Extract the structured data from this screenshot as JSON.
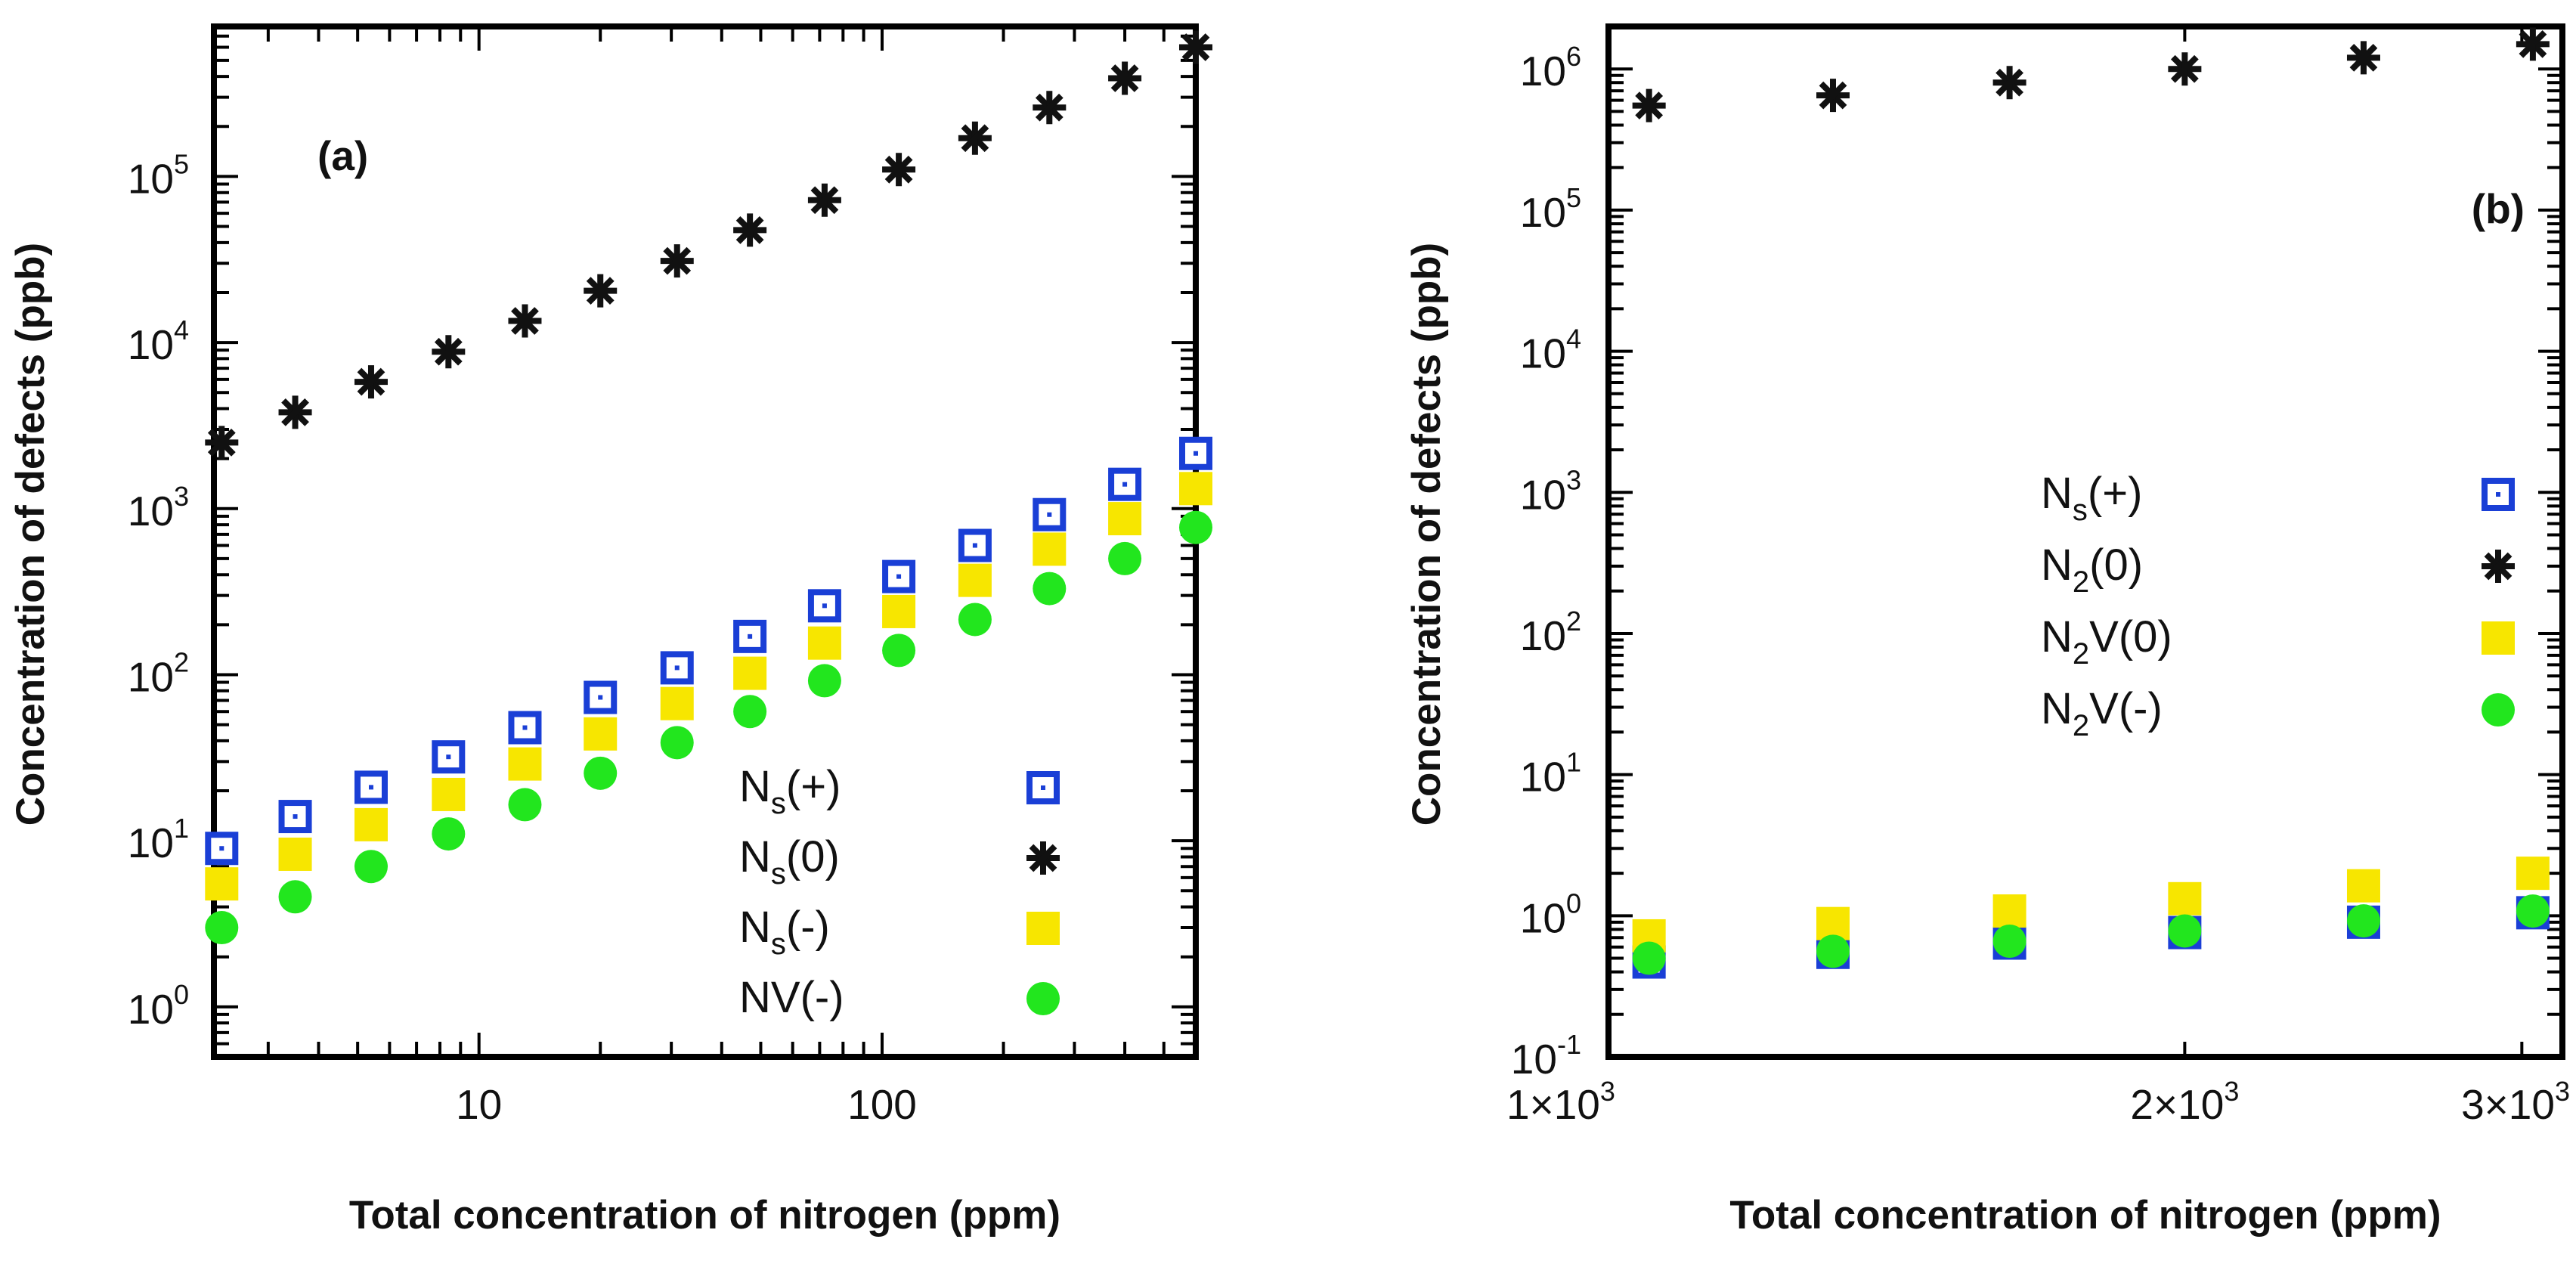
{
  "chart_data": [
    {
      "id": "a",
      "type": "scatter",
      "panel_label": "(a)",
      "xscale": "log",
      "yscale": "log",
      "xlim": [
        2.2,
        600
      ],
      "ylim": [
        0.5,
        800000
      ],
      "xlabel": "Total concentration of nitrogen (ppm)",
      "ylabel": "Concentration of defects (ppb)",
      "x_ticks": [
        {
          "value": 10,
          "label": "10"
        },
        {
          "value": 100,
          "label": "100"
        }
      ],
      "y_ticks": [
        {
          "value": 1,
          "base": "10",
          "exp": "0"
        },
        {
          "value": 10,
          "base": "10",
          "exp": "1"
        },
        {
          "value": 100,
          "base": "10",
          "exp": "2"
        },
        {
          "value": 1000,
          "base": "10",
          "exp": "3"
        },
        {
          "value": 10000,
          "base": "10",
          "exp": "4"
        },
        {
          "value": 100000,
          "base": "10",
          "exp": "5"
        }
      ],
      "legend_position": "bottom-right",
      "series": [
        {
          "name": "Ns(+)",
          "label_main": "N",
          "label_sub": "s",
          "label_tail": "(+)",
          "marker": "square-dot",
          "color": "#1a3fd6",
          "x": [
            2.3,
            3.5,
            5.4,
            8.4,
            13,
            20,
            31,
            47,
            72,
            110,
            170,
            260,
            400,
            600
          ],
          "y": [
            9,
            14,
            21,
            32,
            48,
            73,
            110,
            170,
            260,
            390,
            600,
            920,
            1400,
            2150
          ]
        },
        {
          "name": "Ns(0)",
          "label_main": "N",
          "label_sub": "s",
          "label_tail": "(0)",
          "marker": "asterisk",
          "color": "#111111",
          "x": [
            2.3,
            3.5,
            5.4,
            8.4,
            13,
            20,
            31,
            47,
            72,
            110,
            170,
            260,
            400,
            600
          ],
          "y": [
            2500,
            3800,
            5800,
            8800,
            13500,
            20500,
            31000,
            47500,
            72000,
            110000,
            170000,
            260000,
            390000,
            600000
          ]
        },
        {
          "name": "Ns(-)",
          "label_main": "N",
          "label_sub": "s",
          "label_tail": "(-)",
          "marker": "square",
          "color": "#f7e600",
          "x": [
            2.3,
            3.5,
            5.4,
            8.4,
            13,
            20,
            31,
            47,
            72,
            110,
            170,
            260,
            400,
            600
          ],
          "y": [
            5.5,
            8.3,
            12.5,
            19,
            29,
            44,
            67,
            102,
            155,
            240,
            370,
            570,
            870,
            1320
          ]
        },
        {
          "name": "NV(-)",
          "label_main": "NV(-)",
          "label_sub": "",
          "label_tail": "",
          "marker": "circle",
          "color": "#22e61e",
          "x": [
            2.3,
            3.5,
            5.4,
            8.4,
            13,
            20,
            31,
            47,
            72,
            110,
            170,
            260,
            400,
            600
          ],
          "y": [
            3,
            4.6,
            7,
            11,
            16.5,
            25.5,
            39,
            60,
            92,
            140,
            215,
            330,
            500,
            770
          ]
        }
      ]
    },
    {
      "id": "b",
      "type": "scatter",
      "panel_label": "(b)",
      "xscale": "log",
      "yscale": "log",
      "xlim": [
        1000,
        3150
      ],
      "ylim": [
        0.1,
        2000000
      ],
      "xlabel": "Total concentration of nitrogen (ppm)",
      "ylabel": "Concentration of defects (ppb)",
      "x_ticks": [
        {
          "value": 1000,
          "mant": "1",
          "base": "10",
          "exp": "3"
        },
        {
          "value": 2000,
          "mant": "2",
          "base": "10",
          "exp": "3"
        },
        {
          "value": 3000,
          "mant": "3",
          "base": "10",
          "exp": "3"
        }
      ],
      "y_ticks": [
        {
          "value": 0.1,
          "base": "10",
          "exp": "-1"
        },
        {
          "value": 1,
          "base": "10",
          "exp": "0"
        },
        {
          "value": 10,
          "base": "10",
          "exp": "1"
        },
        {
          "value": 100,
          "base": "10",
          "exp": "2"
        },
        {
          "value": 1000,
          "base": "10",
          "exp": "3"
        },
        {
          "value": 10000,
          "base": "10",
          "exp": "4"
        },
        {
          "value": 100000,
          "base": "10",
          "exp": "5"
        },
        {
          "value": 1000000,
          "base": "10",
          "exp": "6"
        }
      ],
      "legend_position": "middle-right",
      "series": [
        {
          "name": "Ns(+)",
          "label_main": "N",
          "label_sub": "s",
          "label_tail": "(+)",
          "marker": "square-dot",
          "color": "#1a3fd6",
          "x": [
            1050,
            1310,
            1620,
            2000,
            2480,
            3040
          ],
          "y": [
            0.47,
            0.55,
            0.64,
            0.76,
            0.9,
            1.05
          ]
        },
        {
          "name": "N2(0)",
          "label_main": "N",
          "label_sub": "2",
          "label_tail": "(0)",
          "marker": "asterisk",
          "color": "#111111",
          "x": [
            1050,
            1310,
            1620,
            2000,
            2480,
            3040
          ],
          "y": [
            550000,
            650000,
            800000,
            1000000,
            1200000,
            1500000
          ]
        },
        {
          "name": "N2V(0)",
          "label_main": "N",
          "label_sub": "2",
          "label_tail": "V(0)",
          "marker": "square",
          "color": "#f7e600",
          "x": [
            1050,
            1310,
            1620,
            2000,
            2480,
            3040
          ],
          "y": [
            0.72,
            0.88,
            1.08,
            1.32,
            1.63,
            2.0
          ]
        },
        {
          "name": "N2V(-)",
          "label_main": "N",
          "label_sub": "2",
          "label_tail": "V(-)",
          "marker": "circle",
          "color": "#22e61e",
          "x": [
            1050,
            1310,
            1620,
            2000,
            2480,
            3040
          ],
          "y": [
            0.5,
            0.56,
            0.66,
            0.78,
            0.92,
            1.08
          ]
        }
      ]
    }
  ]
}
